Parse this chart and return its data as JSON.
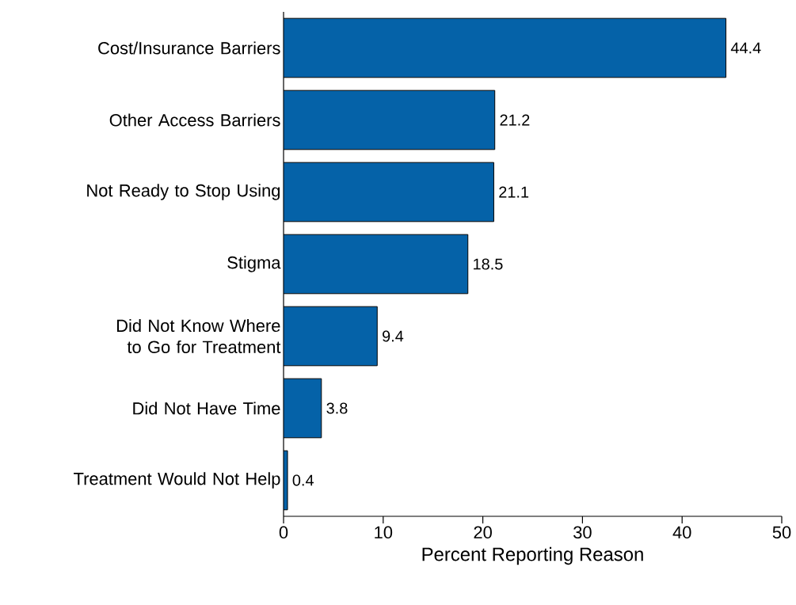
{
  "chart_data": {
    "type": "bar",
    "orientation": "horizontal",
    "xlabel": "Percent Reporting Reason",
    "categories": [
      "Cost/Insurance Barriers",
      "Other Access Barriers",
      "Not Ready to Stop Using",
      "Stigma",
      "Did Not Know Where to Go for Treatment",
      "Did Not Have Time",
      "Treatment Would Not Help"
    ],
    "values": [
      44.4,
      21.2,
      21.1,
      18.5,
      9.4,
      3.8,
      0.4
    ],
    "color": "#0562a8",
    "xlim": [
      0,
      50
    ],
    "xticks": [
      0,
      10,
      20,
      30,
      40,
      50
    ],
    "data_labels": true
  }
}
